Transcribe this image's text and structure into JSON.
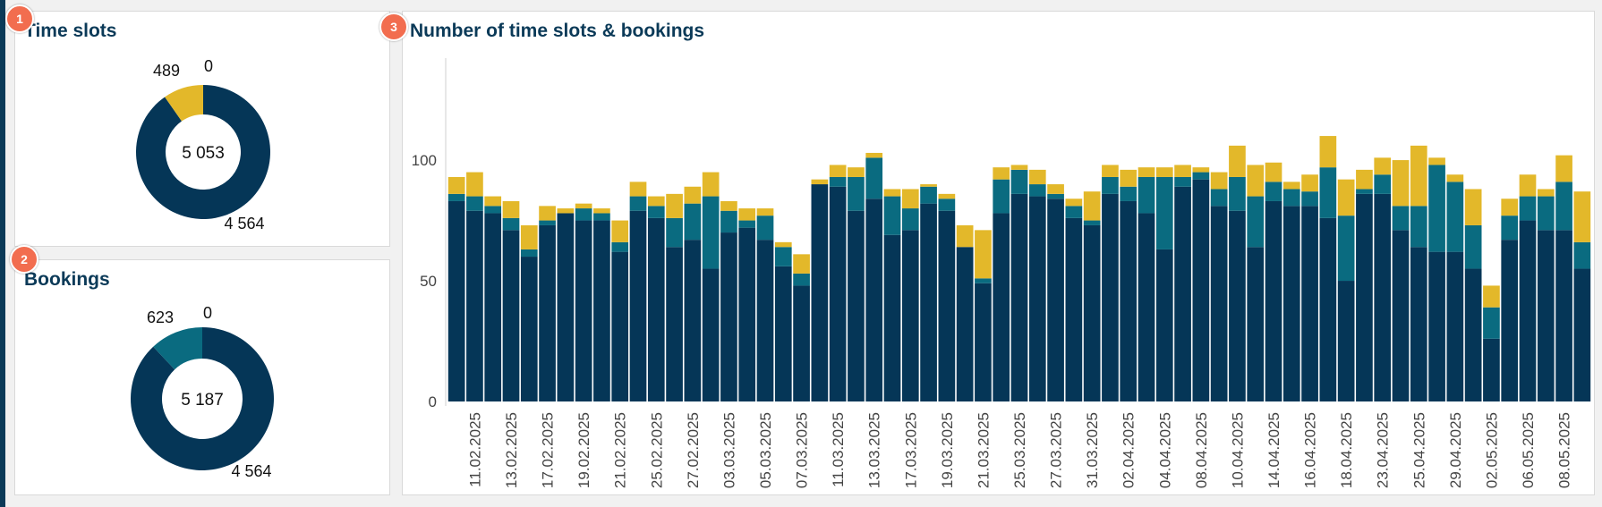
{
  "colors": {
    "dark": "#053657",
    "teal": "#0a6b80",
    "gold": "#e3b82a",
    "title": "#0b3a58",
    "marker": "#f26d4f"
  },
  "markers": [
    "1",
    "2",
    "3"
  ],
  "chart_data": [
    {
      "type": "pie",
      "variant": "donut",
      "title": "Time slots",
      "center_label": "5 053",
      "slices": [
        {
          "label": "4 564",
          "value": 4564,
          "color": "#053657"
        },
        {
          "label": "489",
          "value": 489,
          "color": "#e3b82a"
        },
        {
          "label": "0",
          "value": 0,
          "color": "#0a6b80"
        }
      ]
    },
    {
      "type": "pie",
      "variant": "donut",
      "title": "Bookings",
      "center_label": "5 187",
      "slices": [
        {
          "label": "4 564",
          "value": 4564,
          "color": "#053657"
        },
        {
          "label": "623",
          "value": 623,
          "color": "#0a6b80"
        },
        {
          "label": "0",
          "value": 0,
          "color": "#e3b82a"
        }
      ]
    },
    {
      "type": "bar",
      "stacked": true,
      "title": "Number of time slots & bookings",
      "ylim": [
        0,
        143
      ],
      "yticks": [
        0,
        50,
        100
      ],
      "x_tick_labels": [
        "11.02.2025",
        "13.02.2025",
        "17.02.2025",
        "19.02.2025",
        "21.02.2025",
        "25.02.2025",
        "27.02.2025",
        "03.03.2025",
        "05.03.2025",
        "07.03.2025",
        "11.03.2025",
        "13.03.2025",
        "17.03.2025",
        "19.03.2025",
        "21.03.2025",
        "25.03.2025",
        "27.03.2025",
        "31.03.2025",
        "02.04.2025",
        "04.04.2025",
        "08.04.2025",
        "10.04.2025",
        "14.04.2025",
        "16.04.2025",
        "18.04.2025",
        "23.04.2025",
        "25.04.2025",
        "29.04.2025",
        "02.05.2025",
        "06.05.2025",
        "08.05.2025"
      ],
      "series": [
        {
          "color": "#053657",
          "values": [
            83,
            79,
            78,
            71,
            60,
            73,
            78,
            75,
            75,
            62,
            79,
            76,
            64,
            67,
            55,
            70,
            72,
            67,
            56,
            48,
            90,
            89,
            79,
            84,
            69,
            71,
            82,
            79,
            64,
            49,
            78,
            86,
            85,
            84,
            76,
            73,
            86,
            83,
            78,
            63,
            89,
            92,
            81,
            79,
            64,
            83,
            81,
            81,
            76,
            50,
            86,
            86,
            71,
            64,
            62,
            62,
            55,
            26,
            67,
            75,
            71,
            71,
            55
          ]
        },
        {
          "color": "#0a6b80",
          "values": [
            3,
            6,
            3,
            5,
            3,
            2,
            0,
            5,
            3,
            4,
            6,
            5,
            12,
            15,
            30,
            9,
            3,
            10,
            8,
            5,
            0,
            4,
            14,
            17,
            16,
            9,
            7,
            5,
            0,
            2,
            14,
            10,
            5,
            2,
            5,
            2,
            7,
            6,
            15,
            30,
            4,
            3,
            7,
            14,
            21,
            8,
            7,
            6,
            21,
            27,
            2,
            8,
            10,
            17,
            36,
            29,
            18,
            13,
            10,
            10,
            14,
            20,
            11
          ]
        },
        {
          "color": "#e3b82a",
          "values": [
            7,
            10,
            4,
            7,
            10,
            6,
            2,
            2,
            2,
            9,
            6,
            4,
            10,
            7,
            10,
            4,
            5,
            3,
            2,
            8,
            2,
            5,
            4,
            2,
            3,
            8,
            1,
            2,
            9,
            20,
            5,
            2,
            6,
            4,
            3,
            12,
            5,
            7,
            4,
            4,
            5,
            2,
            7,
            13,
            13,
            8,
            3,
            7,
            13,
            15,
            8,
            7,
            19,
            25,
            3,
            3,
            15,
            9,
            7,
            9,
            3,
            11,
            21
          ]
        }
      ]
    }
  ]
}
